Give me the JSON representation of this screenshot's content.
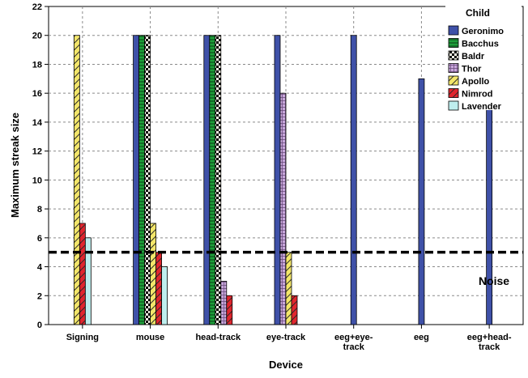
{
  "chart_data": {
    "type": "bar",
    "xlabel": "Device",
    "ylabel": "Maximum streak size",
    "ylim": [
      0,
      22
    ],
    "yticks": [
      0,
      2,
      4,
      6,
      8,
      10,
      12,
      14,
      16,
      18,
      20,
      22
    ],
    "grid": true,
    "legend_title": "Child",
    "legend_position": "top-right",
    "categories": [
      "Signing",
      "mouse",
      "head-track",
      "eye-track",
      "eeg+eye-track",
      "eeg",
      "eeg+head-track"
    ],
    "series": [
      {
        "name": "Geronimo",
        "color": "#3f51a8",
        "pattern": "solid",
        "values": [
          null,
          20,
          20,
          20,
          20,
          17,
          15
        ]
      },
      {
        "name": "Bacchus",
        "color": "#1e9e3a",
        "pattern": "hlines",
        "values": [
          null,
          20,
          20,
          null,
          null,
          null,
          null
        ]
      },
      {
        "name": "Baldr",
        "color": "#f2f0d8",
        "pattern": "checker",
        "values": [
          null,
          20,
          20,
          null,
          null,
          null,
          null
        ]
      },
      {
        "name": "Thor",
        "color": "#c9a8dc",
        "pattern": "grid",
        "values": [
          null,
          null,
          3,
          16,
          null,
          null,
          null
        ]
      },
      {
        "name": "Apollo",
        "color": "#f3e66a",
        "pattern": "diag",
        "values": [
          20,
          7,
          null,
          5,
          null,
          null,
          null
        ]
      },
      {
        "name": "Nimrod",
        "color": "#e0262e",
        "pattern": "diag",
        "values": [
          7,
          5,
          2,
          2,
          null,
          null,
          null
        ]
      },
      {
        "name": "Lavender",
        "color": "#bfeeee",
        "pattern": "solid",
        "values": [
          6,
          4,
          null,
          null,
          null,
          null,
          null
        ]
      }
    ],
    "reference_line": {
      "value": 5,
      "style": "dashed"
    },
    "annotations": [
      {
        "text": "Noise"
      }
    ]
  }
}
